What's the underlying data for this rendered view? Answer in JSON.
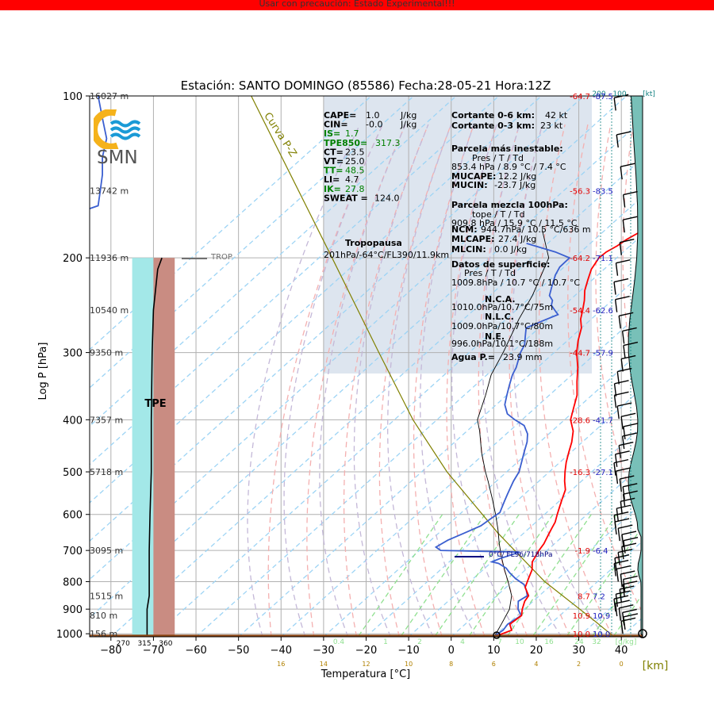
{
  "banner": {
    "text": "Usar con precaución: Estado Experimental!!!",
    "color": "#ff0000"
  },
  "logo": {
    "text": "SMN",
    "icon": "smn-logo-icon"
  },
  "chart_data": {
    "type": "line",
    "title": "Estación: SANTO DOMINGO (85586)  Fecha:28-05-21 Hora:12Z",
    "xlabel": "Temperatura [°C]",
    "ylabel": "Log P [hPa]",
    "km_label": "[km]",
    "kt_label": "[kt]",
    "xlim": [
      -85,
      45
    ],
    "ylim": [
      1013,
      100
    ],
    "y_log": true,
    "x_ticks": [
      -80,
      -70,
      -60,
      -50,
      -40,
      -30,
      -20,
      -10,
      0,
      10,
      20,
      30,
      40
    ],
    "y_ticks": [
      100,
      200,
      300,
      400,
      500,
      600,
      700,
      800,
      900,
      1000
    ],
    "km_ticks": [
      {
        "x": -40,
        "label": "16"
      },
      {
        "x": -30,
        "label": "14"
      },
      {
        "x": -20,
        "label": "12"
      },
      {
        "x": -10,
        "label": "10"
      },
      {
        "x": 0,
        "label": "8"
      },
      {
        "x": 10,
        "label": "6"
      },
      {
        "x": 20,
        "label": "4"
      },
      {
        "x": 30,
        "label": "2"
      },
      {
        "x": 40,
        "label": "0"
      }
    ],
    "heights": [
      {
        "p": 100,
        "label": "16027 m"
      },
      {
        "p": 150,
        "label": "13742 m"
      },
      {
        "p": 200,
        "label": "11936 m"
      },
      {
        "p": 250,
        "label": "10540 m"
      },
      {
        "p": 300,
        "label": "9350 m"
      },
      {
        "p": 400,
        "label": "7357 m"
      },
      {
        "p": 500,
        "label": "5718 m"
      },
      {
        "p": 700,
        "label": "3095 m"
      },
      {
        "p": 850,
        "label": "1515 m"
      },
      {
        "p": 925,
        "label": "810 m"
      },
      {
        "p": 1000,
        "label": "156 m"
      }
    ],
    "right_temps": [
      {
        "p": 100,
        "t": "-64.7",
        "td": "-87.5"
      },
      {
        "p": 150,
        "t": "-56.3",
        "td": "-83.5"
      },
      {
        "p": 200,
        "t": "-64.2",
        "td": "-71.1"
      },
      {
        "p": 250,
        "t": "-54.4",
        "td": "-62.6"
      },
      {
        "p": 300,
        "t": "-44.7",
        "td": "-57.9"
      },
      {
        "p": 400,
        "t": "-28.6",
        "td": "-41.7"
      },
      {
        "p": 500,
        "t": "-16.3",
        "td": "-27.1"
      },
      {
        "p": 700,
        "t": "-1.9",
        "td": "-6.4"
      },
      {
        "p": 850,
        "t": "8.7",
        "td": "7.2"
      },
      {
        "p": 925,
        "t": "10.9",
        "td": "10.9"
      },
      {
        "p": 1000,
        "t": "10.0",
        "td": "10.0"
      }
    ],
    "wind_speed_labels": [
      "200",
      "100"
    ],
    "temperature": [
      [
        10.5,
        1009
      ],
      [
        12.5,
        985
      ],
      [
        10.5,
        960
      ],
      [
        11,
        925
      ],
      [
        9.5,
        900
      ],
      [
        8,
        870
      ],
      [
        7.5,
        850
      ],
      [
        4.5,
        820
      ],
      [
        3,
        790
      ],
      [
        1.5,
        760
      ],
      [
        -0.5,
        735
      ],
      [
        -1.9,
        700
      ],
      [
        -2.5,
        680
      ],
      [
        -3.5,
        660
      ],
      [
        -4.5,
        640
      ],
      [
        -5.5,
        620
      ],
      [
        -7,
        600
      ],
      [
        -8.5,
        580
      ],
      [
        -10,
        560
      ],
      [
        -11.5,
        540
      ],
      [
        -14,
        520
      ],
      [
        -16.3,
        500
      ],
      [
        -18.5,
        480
      ],
      [
        -20.5,
        460
      ],
      [
        -22.5,
        440
      ],
      [
        -25,
        420
      ],
      [
        -28.6,
        400
      ],
      [
        -31,
        380
      ],
      [
        -33.5,
        360
      ],
      [
        -37,
        340
      ],
      [
        -40.5,
        320
      ],
      [
        -44.7,
        300
      ],
      [
        -47.5,
        285
      ],
      [
        -50,
        270
      ],
      [
        -52.5,
        260
      ],
      [
        -54.4,
        250
      ],
      [
        -56.5,
        240
      ],
      [
        -59,
        230
      ],
      [
        -61,
        220
      ],
      [
        -63,
        210
      ],
      [
        -64.2,
        200
      ],
      [
        -64,
        195
      ],
      [
        -63,
        190
      ],
      [
        -62.5,
        185
      ],
      [
        -61.5,
        180
      ],
      [
        -60.5,
        175
      ],
      [
        -60.5,
        170
      ],
      [
        -59.5,
        165
      ],
      [
        -59.5,
        160
      ],
      [
        -59,
        155
      ],
      [
        -58.5,
        150
      ],
      [
        -59,
        145
      ],
      [
        -59,
        140
      ],
      [
        -60.5,
        135
      ],
      [
        -62,
        130
      ],
      [
        -63.5,
        125
      ],
      [
        -64,
        120
      ],
      [
        -64.5,
        115
      ],
      [
        -65,
        110
      ],
      [
        -65,
        105
      ],
      [
        -64.7,
        100
      ]
    ],
    "dewpoint": [
      [
        10,
        1009
      ],
      [
        10.5,
        985
      ],
      [
        10,
        960
      ],
      [
        10.9,
        925
      ],
      [
        8.5,
        900
      ],
      [
        6.5,
        870
      ],
      [
        7.2,
        850
      ],
      [
        5.5,
        830
      ],
      [
        3.5,
        810
      ],
      [
        0,
        790
      ],
      [
        -3,
        770
      ],
      [
        -5,
        755
      ],
      [
        -8,
        740
      ],
      [
        -10,
        735
      ],
      [
        -9,
        725
      ],
      [
        -6,
        705
      ],
      [
        -25,
        700
      ],
      [
        -27,
        690
      ],
      [
        -26,
        670
      ],
      [
        -24,
        650
      ],
      [
        -22,
        630
      ],
      [
        -21.5,
        610
      ],
      [
        -21,
        595
      ],
      [
        -22,
        580
      ],
      [
        -23,
        565
      ],
      [
        -24,
        550
      ],
      [
        -25,
        535
      ],
      [
        -26,
        520
      ],
      [
        -27.1,
        500
      ],
      [
        -29,
        480
      ],
      [
        -31,
        460
      ],
      [
        -33,
        440
      ],
      [
        -35,
        425
      ],
      [
        -38,
        410
      ],
      [
        -41.7,
        400
      ],
      [
        -45,
        390
      ],
      [
        -48,
        375
      ],
      [
        -50,
        360
      ],
      [
        -52,
        345
      ],
      [
        -54,
        330
      ],
      [
        -55,
        320
      ],
      [
        -57.9,
        300
      ],
      [
        -59,
        290
      ],
      [
        -61,
        280
      ],
      [
        -63,
        270
      ],
      [
        -61,
        262
      ],
      [
        -59,
        255
      ],
      [
        -61,
        250
      ],
      [
        -63,
        245
      ],
      [
        -64,
        240
      ],
      [
        -66,
        235
      ],
      [
        -68,
        225
      ],
      [
        -70,
        215
      ],
      [
        -71,
        208
      ],
      [
        -71.1,
        200
      ],
      [
        -76,
        195
      ],
      [
        -85,
        188
      ]
    ],
    "dewpoint_upper": [
      [
        -85,
        162
      ],
      [
        -83,
        160
      ],
      [
        -82.5,
        150
      ],
      [
        -82,
        140
      ],
      [
        -82,
        130
      ],
      [
        -81,
        120
      ],
      [
        -82,
        110
      ],
      [
        -83,
        100
      ]
    ],
    "parcel": [
      [
        10,
        1009
      ],
      [
        8.5,
        960
      ],
      [
        6.5,
        900
      ],
      [
        3.5,
        850
      ],
      [
        -1,
        800
      ],
      [
        -5,
        760
      ],
      [
        -9,
        720
      ],
      [
        -13,
        680
      ],
      [
        -17,
        640
      ],
      [
        -21.5,
        600
      ],
      [
        -26.5,
        560
      ],
      [
        -32,
        520
      ],
      [
        -35,
        500
      ],
      [
        -41,
        460
      ],
      [
        -47,
        420
      ],
      [
        -50.5,
        400
      ],
      [
        -55,
        360
      ],
      [
        -59,
        330
      ],
      [
        -62,
        300
      ],
      [
        -67,
        260
      ],
      [
        -70,
        235
      ],
      [
        -76,
        200
      ],
      [
        -85,
        177
      ]
    ],
    "tpe": [
      [
        -71.5,
        1009
      ],
      [
        -71.5,
        950
      ],
      [
        -71.5,
        900
      ],
      [
        -71,
        850
      ],
      [
        -71,
        800
      ],
      [
        -71,
        700
      ],
      [
        -70.8,
        600
      ],
      [
        -70.5,
        500
      ],
      [
        -70.5,
        400
      ],
      [
        -70.3,
        300
      ],
      [
        -70,
        250
      ],
      [
        -69,
        210
      ],
      [
        -68,
        200
      ]
    ],
    "tpe_label": "TPE",
    "band_cyan": {
      "x": [
        -75,
        -70
      ],
      "p": [
        1009,
        200
      ],
      "color": "#a3e8e8"
    },
    "band_brown": {
      "x": [
        -70,
        -65
      ],
      "p": [
        1009,
        200
      ],
      "color": "#c98c82"
    },
    "theta_labels": [
      {
        "x": -76,
        "label": "270"
      },
      {
        "x": -71,
        "label": "315"
      },
      {
        "x": -66,
        "label": "360"
      }
    ],
    "mixing_ratio_labels": [
      "0.4",
      "1",
      "2",
      "4",
      "7",
      "10",
      "16",
      "24",
      "32",
      "[g/kg]"
    ],
    "pz_curve": {
      "label": "Curva P-Z",
      "color": "#808000",
      "points": [
        [
          -47,
          100
        ],
        [
          -28,
          200
        ],
        [
          -17,
          300
        ],
        [
          -9,
          400
        ],
        [
          -1,
          500
        ],
        [
          11,
          650
        ],
        [
          22,
          800
        ],
        [
          34,
          950
        ],
        [
          38,
          1009
        ]
      ]
    },
    "trop": {
      "p": 200,
      "label": "TROP",
      "text1": "Tropopausa",
      "text2": "201hPa/-64°C/FL390/11.9km"
    },
    "freezing": {
      "p": 718,
      "label": "0°C/  FL96/718hPa"
    },
    "wind_profile_color": "#78c0b8",
    "indices": [
      {
        "name": "CAPE=",
        "value": "1.0",
        "unit": "J/kg",
        "color": "#000"
      },
      {
        "name": "CIN=",
        "value": "-0.0",
        "unit": "J/kg",
        "color": "#000"
      },
      {
        "name": "IS=",
        "value": "1.7",
        "unit": "",
        "color": "#008000"
      },
      {
        "name": "TPE850=",
        "value": "317.3",
        "unit": "",
        "color": "#008000"
      },
      {
        "name": "CT=",
        "value": "23.5",
        "unit": "",
        "color": "#000"
      },
      {
        "name": "VT=",
        "value": "25.0",
        "unit": "",
        "color": "#000"
      },
      {
        "name": "TT=",
        "value": "48.5",
        "unit": "",
        "color": "#008000"
      },
      {
        "name": "LI=",
        "value": "4.7",
        "unit": "",
        "color": "#000"
      },
      {
        "name": "IK=",
        "value": "27.8",
        "unit": "",
        "color": "#008000"
      },
      {
        "name": "SWEAT =",
        "value": "124.0",
        "unit": "",
        "color": "#000"
      }
    ],
    "shear": [
      {
        "name": "Cortante 0-6 km:",
        "value": "42 kt"
      },
      {
        "name": "Cortante 0-3 km:",
        "value": "23 kt"
      }
    ],
    "mu_parcel": {
      "title": "Parcela más inestable:",
      "header": "Pres    /    T       /     Td",
      "values": "853.4  hPa /  8.9   °C /  7.4   °C",
      "mucape_label": "MUCAPE:",
      "mucape": "12.2      J/kg",
      "mucin_label": "MUCIN:",
      "mucin": "-23.7    J/kg"
    },
    "ml_parcel": {
      "title": "Parcela mezcla 100hPa:",
      "header": "tope     /      T       /     Td",
      "values": "909.8  hPa / 15.9 °C /  11.5 °C",
      "ncm_label": "NCM:",
      "ncm": "944.7hPa/ 10.5 °C/636  m",
      "mlcape_label": "MLCAPE:",
      "mlcape": "27.4      J/kg",
      "mlcin_label": "MLCIN:",
      "mlcin": "0.0        J/kg"
    },
    "surface": {
      "title": "Datos de superficie:",
      "header": "Pres     /      T       /     Td",
      "values": "1009.8hPa / 10.7 °C /  10.7 °C",
      "nca_label": "N.C.A.",
      "nca": "1010.0hPa/10.7°C/75m",
      "nlc_label": "N.L.C.",
      "nlc": "1009.0hPa/10.7°C/80m",
      "ne_label": "N.E.",
      "ne": "996.0hPa/10.1°C/188m",
      "pw_label": "Agua P.=",
      "pw": "23.9  mm"
    }
  }
}
